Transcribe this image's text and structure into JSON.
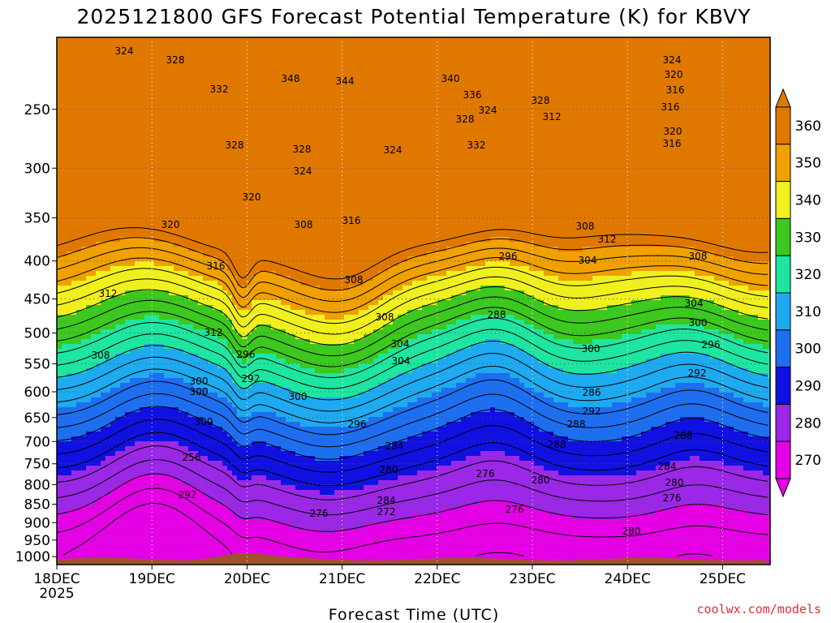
{
  "chart_data": {
    "type": "heatmap",
    "title": "2025121800 GFS Forecast Potential Temperature (K) for KBVY",
    "xlabel": "Forecast Time (UTC)",
    "x_ticks": [
      "18DEC",
      "19DEC",
      "20DEC",
      "21DEC",
      "22DEC",
      "23DEC",
      "24DEC",
      "25DEC"
    ],
    "x_first_tick_year": "2025",
    "y_ticks": [
      250,
      300,
      350,
      400,
      450,
      500,
      550,
      600,
      650,
      700,
      750,
      800,
      850,
      900,
      950,
      1000
    ],
    "y_axis": "pressure (hPa), reversed, log",
    "ylim": [
      1025,
      200
    ],
    "xlim_days": [
      0,
      7.5
    ],
    "colorbar": {
      "levels": [
        270,
        280,
        290,
        300,
        310,
        320,
        330,
        340,
        350,
        360
      ],
      "colors": [
        "#e600e6",
        "#9a28e6",
        "#1010e0",
        "#1e6ef0",
        "#1eaaf0",
        "#1ee6a0",
        "#3cc81e",
        "#f0f01e",
        "#f0a000",
        "#e07800"
      ]
    },
    "contour_labels": [
      "324",
      "328",
      "332",
      "328",
      "348",
      "344",
      "340",
      "336",
      "328",
      "324",
      "332",
      "328",
      "324",
      "320",
      "316",
      "316",
      "312",
      "320",
      "316",
      "328",
      "324",
      "324",
      "320",
      "316",
      "320",
      "308",
      "308",
      "312",
      "316",
      "296",
      "304",
      "308",
      "312",
      "308",
      "308",
      "304",
      "300",
      "304",
      "312",
      "300",
      "288",
      "296",
      "308",
      "292",
      "304",
      "300",
      "300",
      "296",
      "300",
      "296",
      "286",
      "292",
      "288",
      "292",
      "284",
      "288",
      "288",
      "300",
      "256",
      "292",
      "284",
      "280",
      "284",
      "280",
      "276",
      "276",
      "272",
      "280",
      "276",
      "276",
      "280"
    ]
  },
  "credit": "coolwx.com/models"
}
